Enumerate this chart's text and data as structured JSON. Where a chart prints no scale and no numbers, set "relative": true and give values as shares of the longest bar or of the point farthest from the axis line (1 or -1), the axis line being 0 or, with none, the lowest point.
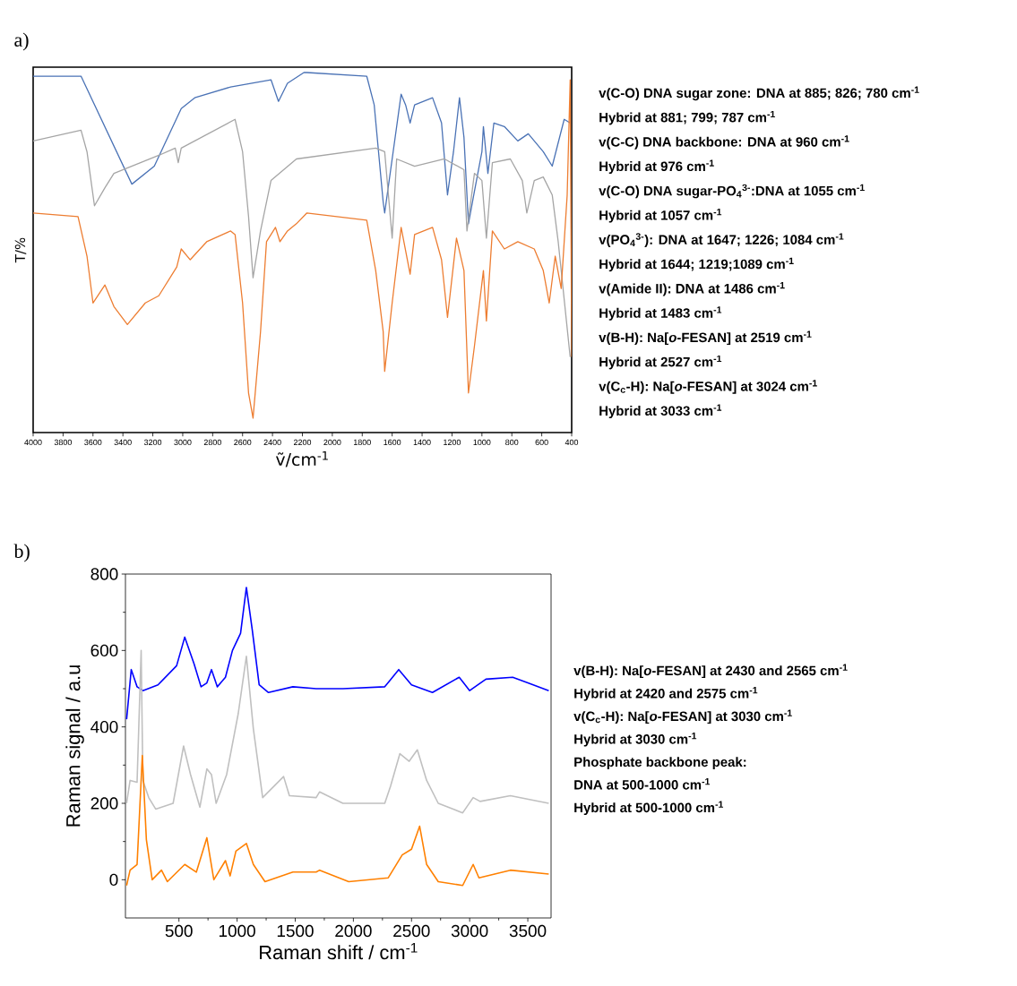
{
  "chart_data": [
    {
      "type": "line",
      "title": "a)",
      "xlabel": "ṽ/cm$^{-1}$",
      "ylabel": "T/%",
      "relative": true,
      "xlim": [
        4000,
        400
      ],
      "xticks": [
        4000,
        3800,
        3600,
        3400,
        3200,
        3000,
        2800,
        2600,
        2400,
        2200,
        2000,
        1800,
        1600,
        1400,
        1200,
        1000,
        800,
        600,
        400
      ],
      "annotations": [
        "v(C-O) DNA sugar zone: DNA at 885; 826; 780 cm$^{-1}$",
        "Hybrid at 881; 799; 787 cm$^{-1}$",
        "v(C-C) DNA backbone: DNA at 960 cm$^{-1}$",
        "Hybrid at 976 cm$^{-1}$",
        "v(C-O) DNA sugar-PO$_{4}$$^{3-}$:DNA at 1055 cm$^{-1}$",
        "Hybrid at 1057 cm$^{-1}$",
        "v(PO$_{4}$$^{3-}$): DNA at 1647; 1226; 1084 cm$^{-1}$",
        "Hybrid at 1644; 1219;1089 cm$^{-1}$",
        "v(Amide II): DNA at 1486 cm$^{-1}$",
        "Hybrid at 1483 cm$^{-1}$",
        "v(B-H): Na[*o*-FESAN] at 2519 cm$^{-1}$",
        "Hybrid at 2527 cm$^{-1}$",
        "v(C$_{c}$-H): Na[*o*-FESAN] at 3024 cm$^{-1}$",
        "Hybrid at 3033 cm$^{-1}$"
      ],
      "series": [
        {
          "color": "#4a72b5",
          "x": [
            4000,
            3680,
            3340,
            3190,
            3010,
            2920,
            2680,
            2410,
            2360,
            2300,
            2190,
            2170,
            1770,
            1720,
            1660,
            1650,
            1600,
            1540,
            1510,
            1480,
            1450,
            1330,
            1270,
            1230,
            1190,
            1150,
            1120,
            1090,
            1050,
            1000,
            990,
            960,
            920,
            850,
            760,
            690,
            590,
            530,
            450,
            410
          ],
          "values": [
            0.99,
            0.99,
            0.69,
            0.74,
            0.9,
            0.93,
            0.96,
            0.98,
            0.92,
            0.97,
            1.0,
            1.0,
            0.99,
            0.91,
            0.64,
            0.61,
            0.76,
            0.94,
            0.91,
            0.86,
            0.91,
            0.93,
            0.86,
            0.66,
            0.78,
            0.93,
            0.82,
            0.58,
            0.67,
            0.78,
            0.85,
            0.72,
            0.86,
            0.85,
            0.81,
            0.83,
            0.78,
            0.74,
            0.87,
            0.86
          ]
        },
        {
          "color": "#a5a5a5",
          "x": [
            4000,
            3680,
            3640,
            3590,
            3520,
            3460,
            3160,
            3050,
            3030,
            3010,
            2650,
            2600,
            2560,
            2530,
            2480,
            2410,
            2240,
            1710,
            1650,
            1600,
            1570,
            1450,
            1250,
            1120,
            1100,
            1050,
            1000,
            970,
            930,
            810,
            730,
            700,
            650,
            590,
            530,
            490,
            410
          ],
          "values": [
            0.81,
            0.84,
            0.78,
            0.63,
            0.68,
            0.72,
            0.77,
            0.79,
            0.75,
            0.79,
            0.87,
            0.78,
            0.6,
            0.43,
            0.56,
            0.7,
            0.76,
            0.79,
            0.78,
            0.54,
            0.76,
            0.74,
            0.76,
            0.73,
            0.56,
            0.72,
            0.7,
            0.54,
            0.75,
            0.76,
            0.7,
            0.61,
            0.7,
            0.71,
            0.66,
            0.53,
            0.21
          ]
        },
        {
          "color": "#ed7d31",
          "x": [
            4000,
            3700,
            3640,
            3600,
            3520,
            3460,
            3370,
            3250,
            3160,
            3040,
            3010,
            2950,
            2840,
            2680,
            2650,
            2600,
            2560,
            2530,
            2480,
            2440,
            2380,
            2350,
            2300,
            2240,
            2170,
            1770,
            1710,
            1660,
            1650,
            1600,
            1540,
            1480,
            1450,
            1330,
            1270,
            1230,
            1170,
            1120,
            1090,
            1050,
            990,
            970,
            930,
            850,
            760,
            650,
            590,
            550,
            510,
            470,
            430,
            410,
            400
          ],
          "values": [
            0.61,
            0.6,
            0.49,
            0.36,
            0.41,
            0.35,
            0.3,
            0.36,
            0.38,
            0.46,
            0.51,
            0.48,
            0.53,
            0.56,
            0.55,
            0.36,
            0.11,
            0.04,
            0.28,
            0.53,
            0.57,
            0.53,
            0.56,
            0.58,
            0.61,
            0.59,
            0.45,
            0.28,
            0.17,
            0.36,
            0.57,
            0.44,
            0.55,
            0.57,
            0.48,
            0.32,
            0.54,
            0.45,
            0.11,
            0.24,
            0.45,
            0.31,
            0.56,
            0.51,
            0.53,
            0.51,
            0.45,
            0.36,
            0.49,
            0.4,
            0.66,
            0.98,
            0.21
          ]
        }
      ]
    },
    {
      "type": "line",
      "title": "b)",
      "xlabel": "Raman shift / cm$^{-1}$",
      "ylabel": "Raman signal / a.u",
      "xlim": [
        40,
        3700
      ],
      "xticks": [
        500,
        1000,
        1500,
        2000,
        2500,
        3000,
        3500
      ],
      "ylim": [
        -100,
        800
      ],
      "yticks": [
        0,
        200,
        400,
        600,
        800
      ],
      "annotations": [
        "v(B-H): Na[*o*-FESAN] at 2430 and 2565 cm$^{-1}$",
        "Hybrid at 2420 and 2575 cm$^{-1}$",
        "v(C$_{c}$-H): Na[*o*-FESAN] at 3030 cm$^{-1}$",
        "Hybrid at 3030 cm$^{-1}$",
        "Phosphate backbone peak:",
        "DNA at 500-1000 cm$^{-1}$",
        "Hybrid at 500-1000 cm$^{-1}$"
      ],
      "series": [
        {
          "color": "#0000ff",
          "x": [
            50,
            90,
            140,
            190,
            320,
            480,
            550,
            630,
            690,
            740,
            780,
            830,
            900,
            960,
            1030,
            1080,
            1130,
            1190,
            1270,
            1480,
            1680,
            1910,
            2270,
            2390,
            2500,
            2680,
            2910,
            3000,
            3140,
            3370,
            3680
          ],
          "values": [
            420,
            550,
            505,
            495,
            510,
            560,
            635,
            565,
            505,
            515,
            550,
            505,
            530,
            600,
            645,
            765,
            655,
            510,
            490,
            505,
            500,
            500,
            505,
            550,
            510,
            490,
            530,
            495,
            525,
            530,
            495
          ]
        },
        {
          "color": "#c0c0c0",
          "x": [
            50,
            80,
            140,
            175,
            190,
            240,
            300,
            450,
            540,
            600,
            680,
            740,
            780,
            820,
            910,
            1010,
            1080,
            1140,
            1220,
            1400,
            1450,
            1680,
            1710,
            1910,
            2270,
            2320,
            2400,
            2480,
            2550,
            2630,
            2730,
            2940,
            3030,
            3090,
            3350,
            3680
          ],
          "values": [
            200,
            260,
            255,
            600,
            260,
            215,
            185,
            200,
            350,
            275,
            190,
            290,
            275,
            200,
            275,
            435,
            585,
            395,
            215,
            270,
            220,
            215,
            230,
            200,
            200,
            245,
            330,
            310,
            340,
            260,
            200,
            175,
            215,
            205,
            220,
            200
          ]
        },
        {
          "color": "#ff8000",
          "x": [
            50,
            80,
            140,
            185,
            220,
            270,
            350,
            400,
            550,
            650,
            740,
            800,
            900,
            940,
            990,
            1080,
            1140,
            1240,
            1480,
            1680,
            1710,
            1960,
            2300,
            2420,
            2500,
            2570,
            2630,
            2730,
            2940,
            3030,
            3080,
            3350,
            3680
          ],
          "values": [
            -15,
            25,
            40,
            325,
            105,
            0,
            25,
            -5,
            40,
            20,
            110,
            0,
            50,
            10,
            75,
            95,
            40,
            -5,
            20,
            20,
            25,
            -5,
            5,
            65,
            80,
            140,
            40,
            -5,
            -15,
            40,
            5,
            25,
            15
          ]
        }
      ]
    }
  ]
}
